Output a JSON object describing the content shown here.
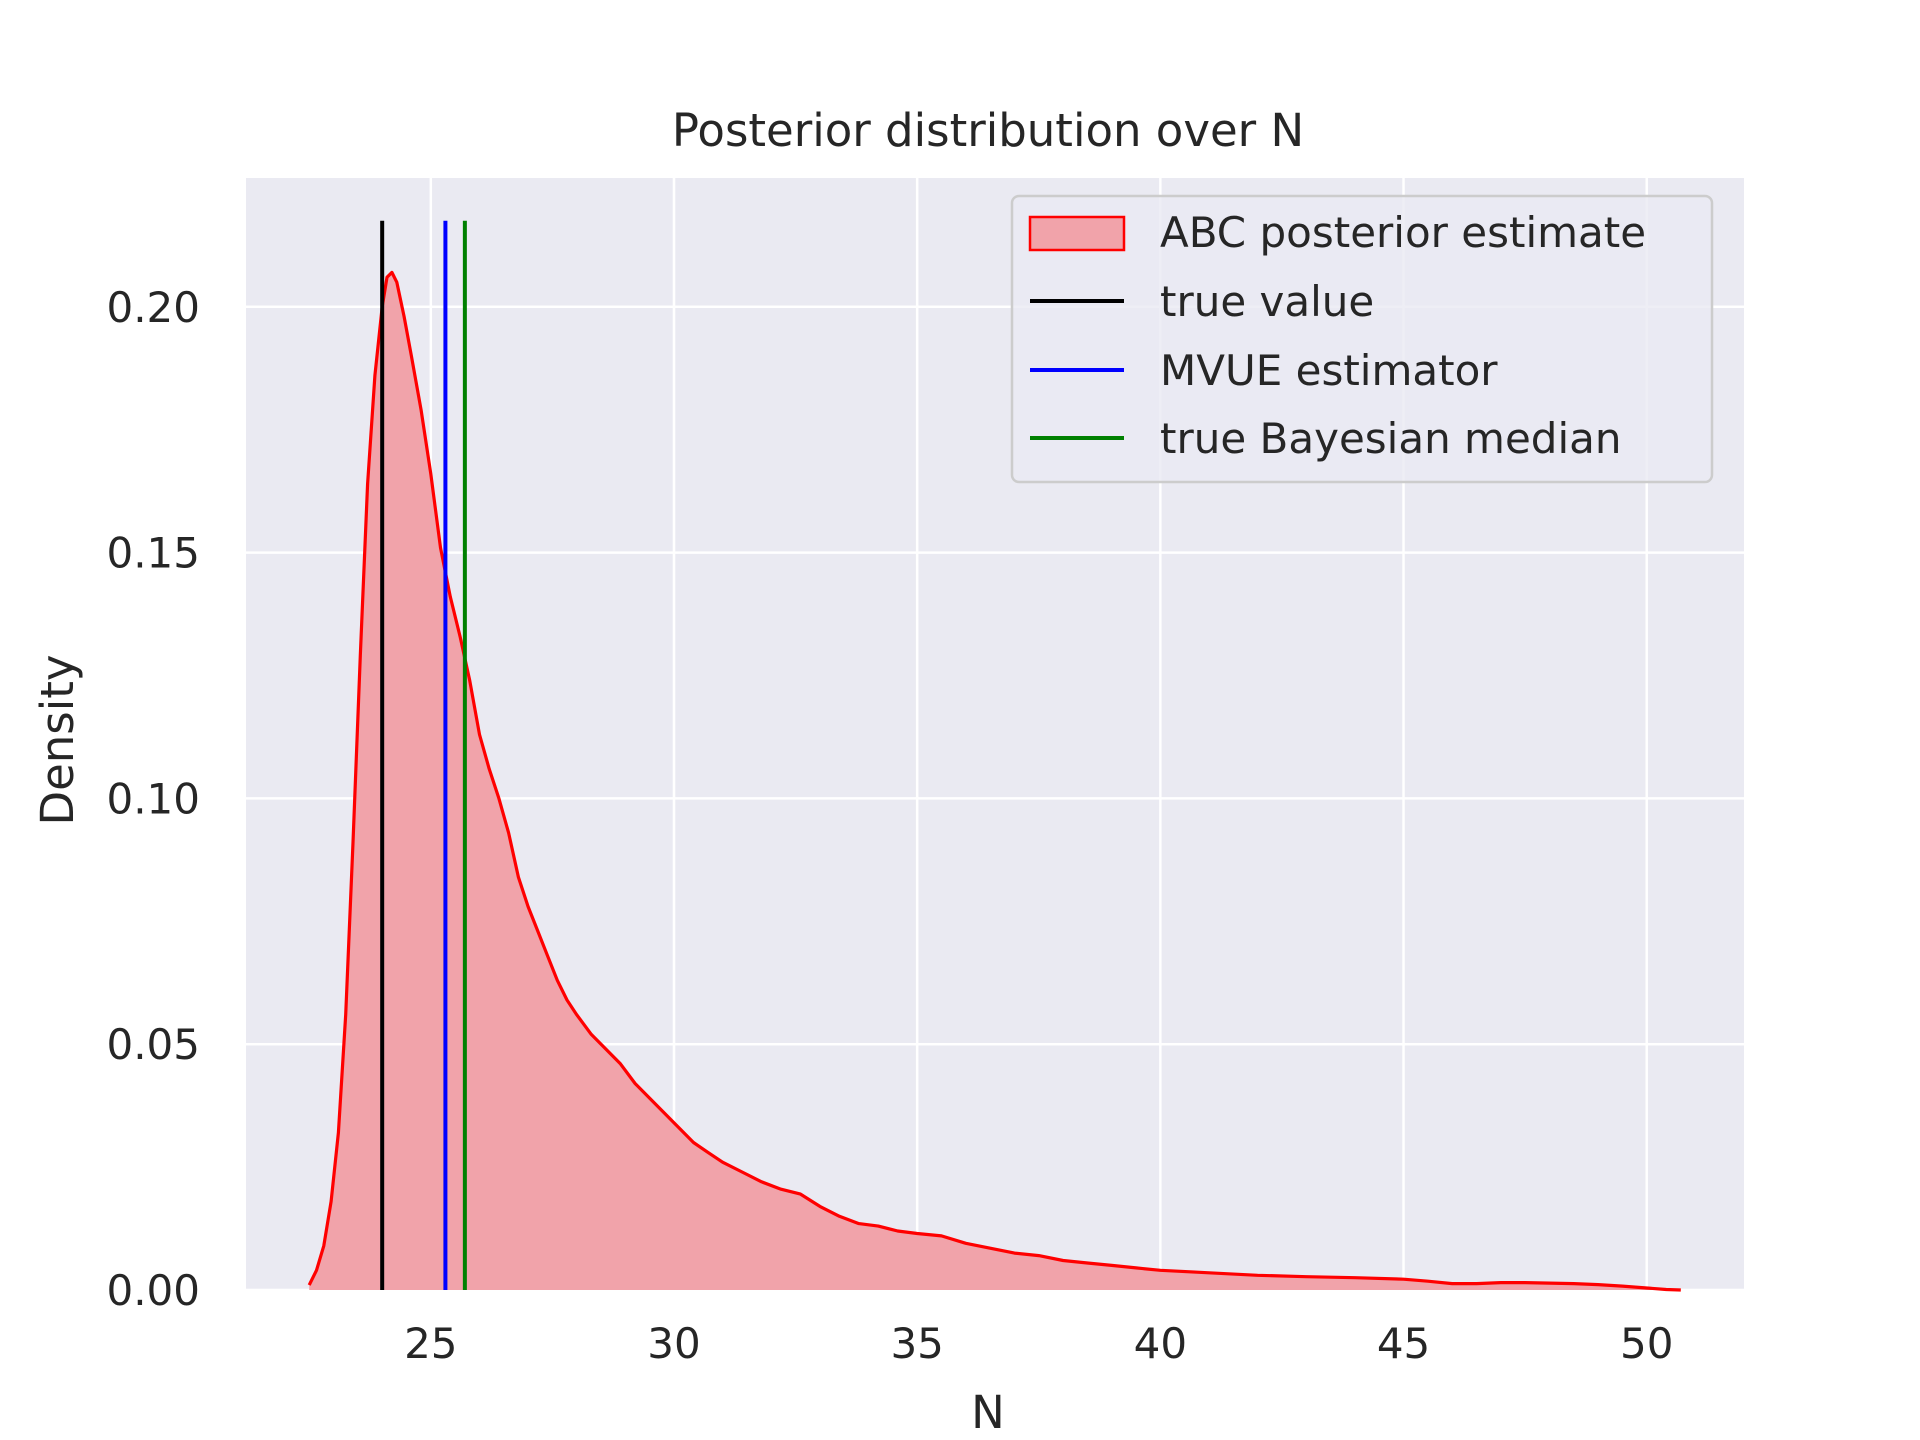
{
  "chart_data": {
    "type": "area",
    "title": "Posterior distribution over N",
    "xlabel": "N",
    "ylabel": "Density",
    "xlim": [
      21.2,
      52.0
    ],
    "ylim": [
      0,
      0.2262
    ],
    "xticks": [
      25,
      30,
      35,
      40,
      45,
      50
    ],
    "yticks": [
      0.0,
      0.05,
      0.1,
      0.15,
      0.2
    ],
    "xtick_labels": [
      "25",
      "30",
      "35",
      "40",
      "45",
      "50"
    ],
    "ytick_labels": [
      "0.00",
      "0.05",
      "0.10",
      "0.15",
      "0.20"
    ],
    "grid": true,
    "legend_position": "top-right",
    "series": [
      {
        "name": "ABC posterior estimate",
        "kind": "kde",
        "line_color": "#ff0000",
        "fill_color": "#f1a3aa",
        "x": [
          22.5,
          22.65,
          22.8,
          22.95,
          23.1,
          23.25,
          23.4,
          23.55,
          23.7,
          23.85,
          24.0,
          24.1,
          24.2,
          24.3,
          24.45,
          24.6,
          24.8,
          25.0,
          25.2,
          25.4,
          25.6,
          25.8,
          26.0,
          26.2,
          26.4,
          26.6,
          26.8,
          27.0,
          27.2,
          27.4,
          27.6,
          27.8,
          28.0,
          28.3,
          28.6,
          28.9,
          29.2,
          29.5,
          29.8,
          30.1,
          30.4,
          30.7,
          31.0,
          31.4,
          31.8,
          32.2,
          32.6,
          33.0,
          33.4,
          33.8,
          34.2,
          34.6,
          35.0,
          35.5,
          36.0,
          36.5,
          37.0,
          37.5,
          38.0,
          38.5,
          39.0,
          39.5,
          40.0,
          41.0,
          42.0,
          43.0,
          44.0,
          45.0,
          45.5,
          46.0,
          46.5,
          47.0,
          47.5,
          48.0,
          48.5,
          49.0,
          49.5,
          50.0,
          50.4,
          50.7
        ],
        "y": [
          0.001,
          0.004,
          0.009,
          0.018,
          0.032,
          0.056,
          0.091,
          0.129,
          0.164,
          0.186,
          0.2,
          0.206,
          0.207,
          0.205,
          0.198,
          0.19,
          0.179,
          0.166,
          0.151,
          0.141,
          0.133,
          0.124,
          0.113,
          0.106,
          0.1,
          0.093,
          0.084,
          0.078,
          0.073,
          0.068,
          0.063,
          0.059,
          0.056,
          0.052,
          0.049,
          0.046,
          0.042,
          0.039,
          0.036,
          0.033,
          0.03,
          0.028,
          0.026,
          0.024,
          0.022,
          0.0205,
          0.0195,
          0.017,
          0.015,
          0.0135,
          0.013,
          0.012,
          0.0115,
          0.011,
          0.0095,
          0.0085,
          0.0075,
          0.007,
          0.006,
          0.0055,
          0.005,
          0.0045,
          0.004,
          0.0035,
          0.003,
          0.0027,
          0.0025,
          0.0022,
          0.0018,
          0.0013,
          0.0013,
          0.0015,
          0.0015,
          0.0014,
          0.0013,
          0.0011,
          0.0008,
          0.0004,
          0.0001,
          0.0
        ]
      },
      {
        "name": "true value",
        "kind": "vline",
        "x": 24.0,
        "ymax": 0.2175,
        "color": "#000000"
      },
      {
        "name": "MVUE estimator",
        "kind": "vline",
        "x": 25.3,
        "ymax": 0.2175,
        "color": "#0000ff"
      },
      {
        "name": "true Bayesian median",
        "kind": "vline",
        "x": 25.7,
        "ymax": 0.2175,
        "color": "#008000"
      }
    ]
  }
}
